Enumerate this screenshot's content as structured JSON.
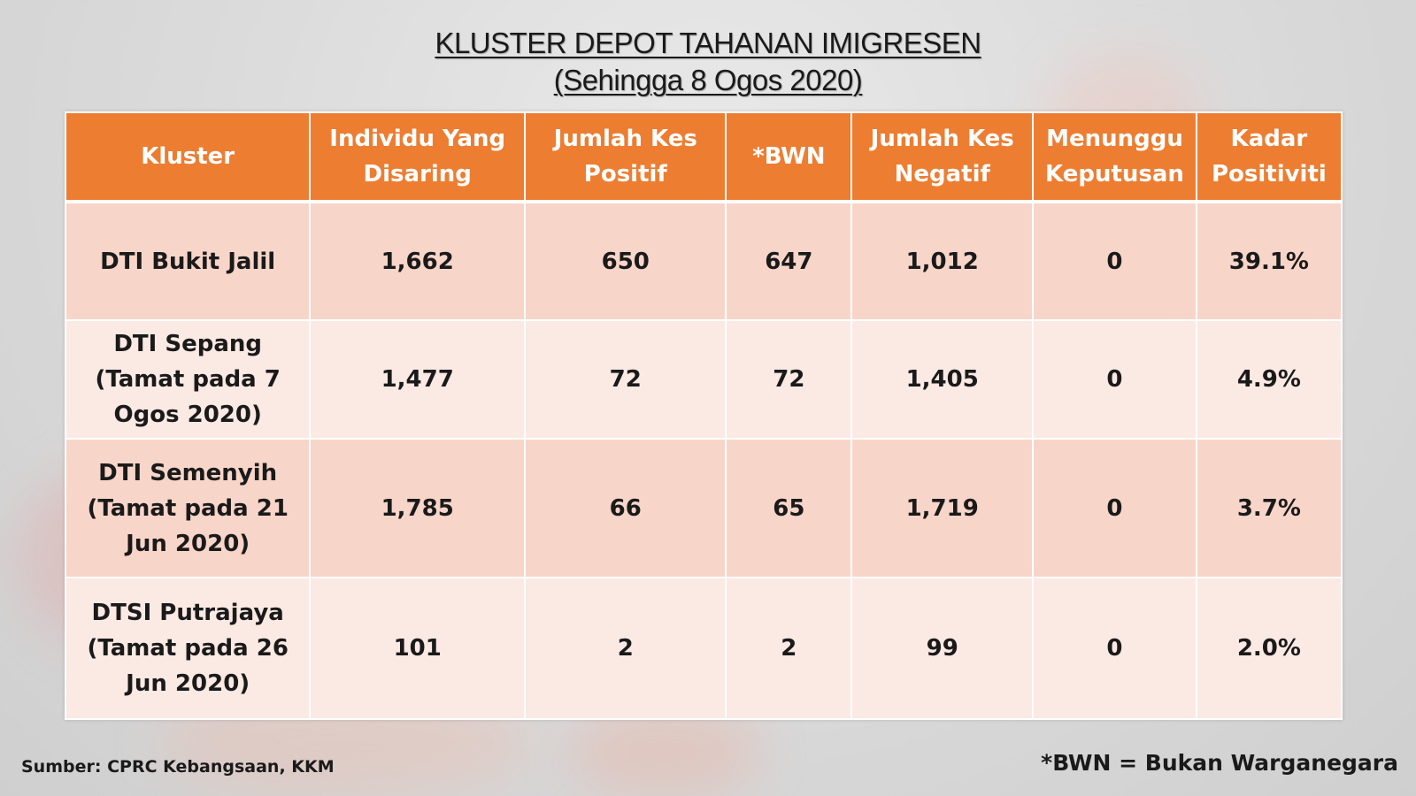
{
  "title": {
    "line1": "KLUSTER DEPOT TAHANAN IMIGRESEN",
    "line2": "(Sehingga 8 Ogos 2020)"
  },
  "table": {
    "headers": [
      "Kluster",
      "Individu Yang Disaring",
      "Jumlah Kes Positif",
      "*BWN",
      "Jumlah Kes Negatif",
      "Menunggu Keputusan",
      "Kadar Positiviti"
    ],
    "rows": [
      [
        "DTI Bukit Jalil",
        "1,662",
        "650",
        "647",
        "1,012",
        "0",
        "39.1%"
      ],
      [
        "DTI Sepang\n(Tamat pada 7\nOgos 2020)",
        "1,477",
        "72",
        "72",
        "1,405",
        "0",
        "4.9%"
      ],
      [
        "DTI Semenyih\n(Tamat pada 21\nJun 2020)",
        "1,785",
        "66",
        "65",
        "1,719",
        "0",
        "3.7%"
      ],
      [
        "DTSI Putrajaya\n(Tamat pada 26\nJun 2020)",
        "101",
        "2",
        "2",
        "99",
        "0",
        "2.0%"
      ]
    ]
  },
  "footer": {
    "source": "Sumber: CPRC Kebangsaan, KKM",
    "note": "*BWN = Bukan Warganegara"
  },
  "colors": {
    "header_bg": "#ed7d31",
    "row_odd_bg": "#f8d5c9",
    "row_even_bg": "#fbe9e4"
  }
}
